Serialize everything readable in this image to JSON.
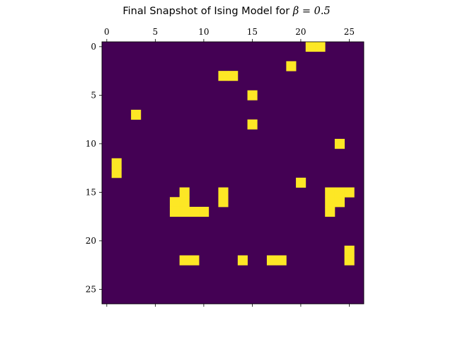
{
  "chart_data": {
    "type": "heatmap",
    "title_prefix": "Final Snapshot of Ising Model for ",
    "title_math": "β = 0.5",
    "rows": 27,
    "cols": 27,
    "colors": {
      "down": "#440154",
      "up": "#fde725",
      "axis": "#000000",
      "background": "#ffffff"
    },
    "xticks": [
      0,
      5,
      10,
      15,
      20,
      25
    ],
    "yticks": [
      0,
      5,
      10,
      15,
      20,
      25
    ],
    "xtick_position": "top",
    "grid": false,
    "up_cells": [
      [
        0,
        21
      ],
      [
        0,
        22
      ],
      [
        2,
        19
      ],
      [
        3,
        12
      ],
      [
        3,
        13
      ],
      [
        5,
        15
      ],
      [
        7,
        3
      ],
      [
        8,
        15
      ],
      [
        10,
        24
      ],
      [
        12,
        1
      ],
      [
        13,
        1
      ],
      [
        14,
        20
      ],
      [
        15,
        8
      ],
      [
        15,
        12
      ],
      [
        15,
        23
      ],
      [
        15,
        24
      ],
      [
        15,
        25
      ],
      [
        16,
        7
      ],
      [
        16,
        8
      ],
      [
        16,
        12
      ],
      [
        16,
        23
      ],
      [
        16,
        24
      ],
      [
        17,
        7
      ],
      [
        17,
        8
      ],
      [
        17,
        9
      ],
      [
        17,
        10
      ],
      [
        17,
        23
      ],
      [
        21,
        25
      ],
      [
        22,
        8
      ],
      [
        22,
        9
      ],
      [
        22,
        14
      ],
      [
        22,
        17
      ],
      [
        22,
        18
      ],
      [
        22,
        25
      ]
    ]
  }
}
